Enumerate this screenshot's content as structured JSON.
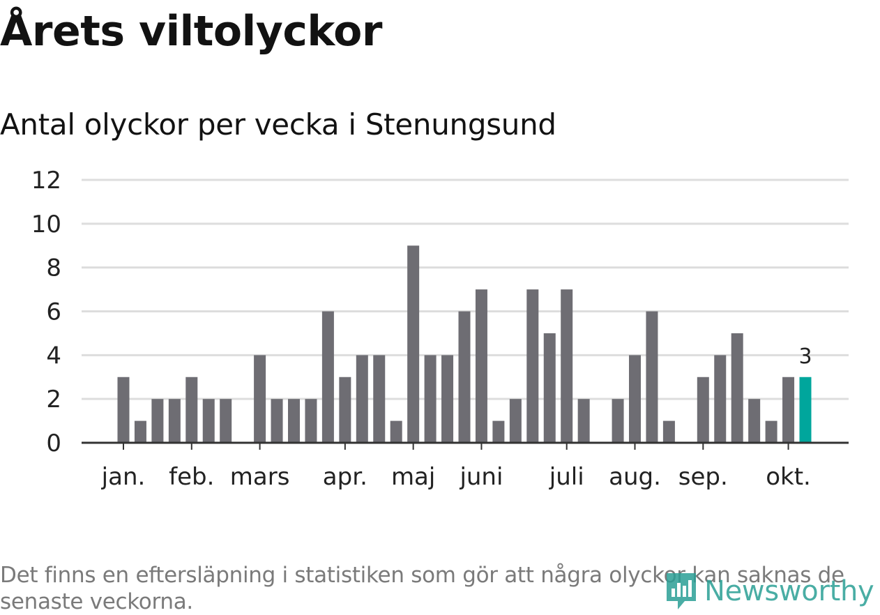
{
  "title": "Årets viltolyckor",
  "subtitle": "Antal olyckor per vecka i Stenungsund",
  "footnote": "Det finns en eftersläpning i statistiken som gör att några olyckor kan saknas de senaste veckorna.",
  "logo": {
    "name": "Newsworthy",
    "icon": "newsworthy-logo-icon"
  },
  "colors": {
    "bar": "#6e6d73",
    "highlight": "#00a69c",
    "grid": "#dddddd",
    "axis": "#333333",
    "text": "#121212"
  },
  "chart_data": {
    "type": "bar",
    "title": "Antal olyckor per vecka i Stenungsund",
    "xlabel": "",
    "ylabel": "",
    "ylim": [
      0,
      12
    ],
    "yticks": [
      0,
      2,
      4,
      6,
      8,
      10,
      12
    ],
    "grid": true,
    "weeks": [
      1,
      2,
      3,
      4,
      5,
      6,
      7,
      8,
      9,
      10,
      11,
      12,
      13,
      14,
      15,
      16,
      17,
      18,
      19,
      20,
      21,
      22,
      23,
      24,
      25,
      26,
      27,
      28,
      29,
      30,
      31,
      32,
      33,
      34,
      35,
      36,
      37,
      38,
      39,
      40,
      41
    ],
    "values": [
      3,
      1,
      2,
      2,
      3,
      2,
      2,
      0,
      4,
      2,
      2,
      2,
      6,
      3,
      4,
      4,
      1,
      9,
      4,
      4,
      6,
      7,
      1,
      2,
      7,
      5,
      7,
      2,
      0,
      2,
      4,
      6,
      1,
      0,
      3,
      4,
      5,
      2,
      1,
      3,
      3
    ],
    "highlight_index": 40,
    "highlight_label": "3",
    "month_labels": [
      {
        "label": "jan.",
        "week": 1
      },
      {
        "label": "feb.",
        "week": 5
      },
      {
        "label": "mars",
        "week": 9
      },
      {
        "label": "apr.",
        "week": 14
      },
      {
        "label": "maj",
        "week": 18
      },
      {
        "label": "juni",
        "week": 22
      },
      {
        "label": "juli",
        "week": 27
      },
      {
        "label": "aug.",
        "week": 31
      },
      {
        "label": "sep.",
        "week": 35
      },
      {
        "label": "okt.",
        "week": 40
      }
    ]
  }
}
